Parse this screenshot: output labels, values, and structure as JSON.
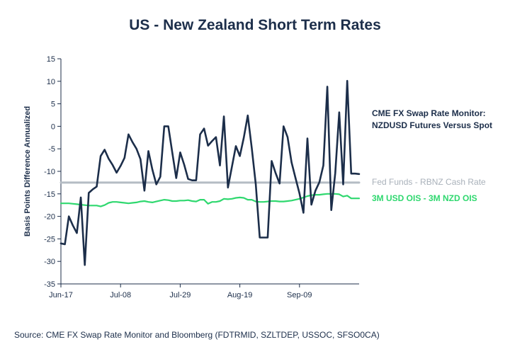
{
  "chart_data": {
    "type": "line",
    "title": "US - New Zealand Short Term Rates",
    "ylabel": "Basis Points Difference Annualized",
    "xlabel": "",
    "ylim": [
      -35,
      15
    ],
    "yticks": [
      15,
      10,
      5,
      0,
      -5,
      -10,
      -15,
      -20,
      -25,
      -30,
      -35
    ],
    "x_tick_labels": [
      "Jun-17",
      "Jul-08",
      "Jul-29",
      "Aug-19",
      "Sep-09"
    ],
    "x_tick_index": [
      0,
      15,
      30,
      45,
      60
    ],
    "x_count": 76,
    "grid": false,
    "legend_placement": "right",
    "series": [
      {
        "name": "CME FX Swap Rate Monitor: NZDUSD Futures Versus Spot",
        "color": "#1c2e4a",
        "values": [
          -26,
          -26.2,
          -20,
          -22,
          -23.7,
          -15.8,
          -30.8,
          -14.8,
          -14,
          -13.4,
          -6.6,
          -5.2,
          -7.2,
          -8.6,
          -10.3,
          -8.8,
          -7,
          -1.8,
          -3.5,
          -5,
          -7.3,
          -14.3,
          -5.5,
          -9.6,
          -12.9,
          -11.2,
          0,
          0,
          -5.8,
          -11.5,
          -5.8,
          -8.5,
          -11.7,
          -12,
          -12,
          -1.8,
          -0.5,
          -4.3,
          -3.3,
          -2.4,
          -8.7,
          2.2,
          -13.6,
          -9,
          -4.4,
          -6.6,
          -2.5,
          2.4,
          -4.8,
          -12.9,
          -24.7,
          -24.7,
          -24.7,
          -7.7,
          -10.4,
          -12.7,
          0,
          -2.4,
          -8,
          -11.5,
          -14.9,
          -19.2,
          -2.7,
          -17.4,
          -14.3,
          -12.4,
          -8.7,
          8.8,
          -18.6,
          -10.4,
          3.1,
          -12.9,
          10.1,
          -10.5,
          -10.5,
          -10.6
        ]
      },
      {
        "name": "Fed Funds - RBNZ Cash Rate",
        "color": "#b4bcc4",
        "values": [
          -12.5,
          -12.5,
          -12.5,
          -12.5,
          -12.5,
          -12.5,
          -12.5,
          -12.5,
          -12.5,
          -12.5,
          -12.5,
          -12.5,
          -12.5,
          -12.5,
          -12.5,
          -12.5,
          -12.5,
          -12.5,
          -12.5,
          -12.5,
          -12.5,
          -12.5,
          -12.5,
          -12.5,
          -12.5,
          -12.5,
          -12.5,
          -12.5,
          -12.5,
          -12.5,
          -12.5,
          -12.5,
          -12.5,
          -12.5,
          -12.5,
          -12.5,
          -12.5,
          -12.5,
          -12.5,
          -12.5,
          -12.5,
          -12.5,
          -12.5,
          -12.5,
          -12.5,
          -12.5,
          -12.5,
          -12.5,
          -12.5,
          -12.5,
          -12.5,
          -12.5,
          -12.5,
          -12.5,
          -12.5,
          -12.5,
          -12.5,
          -12.5,
          -12.5,
          -12.5,
          -12.5,
          -12.5,
          -12.5,
          -12.5,
          -12.5,
          -12.5,
          -12.5,
          -12.5,
          -12.5,
          -12.5,
          -12.5,
          -12.5,
          -12.5,
          -12.5,
          -12.5,
          -12.5
        ]
      },
      {
        "name": "3M USD OIS - 3M NZD OIS",
        "color": "#2fd86f",
        "values": [
          -17.1,
          -17.1,
          -17.1,
          -17.2,
          -17.3,
          -17.4,
          -17.5,
          -17.6,
          -17.6,
          -17.6,
          -17.8,
          -17.5,
          -17,
          -16.8,
          -16.8,
          -16.9,
          -17,
          -17.1,
          -17,
          -16.9,
          -16.7,
          -16.6,
          -16.8,
          -16.9,
          -16.7,
          -16.5,
          -16.3,
          -16.4,
          -16.6,
          -16.6,
          -16.5,
          -16.5,
          -16.4,
          -16.6,
          -16.7,
          -16.3,
          -16.3,
          -17.2,
          -16.8,
          -16.8,
          -16.6,
          -16.1,
          -16.2,
          -16.1,
          -15.9,
          -15.8,
          -15.9,
          -16.3,
          -16.3,
          -16.7,
          -16.8,
          -16.8,
          -16.7,
          -16.6,
          -16.6,
          -16.7,
          -16.7,
          -16.6,
          -16.5,
          -16.3,
          -16.1,
          -15.8,
          -15.5,
          -15.3,
          -15.2,
          -15.2,
          -15.1,
          -15,
          -15,
          -15,
          -15.1,
          -15.6,
          -15.4,
          -16,
          -16,
          -16
        ]
      }
    ]
  },
  "source_note": "Source: CME FX Swap Rate Monitor and Bloomberg (FDTRMID, SZLTDEP, USSOC, SFSO0CA)",
  "legend": {
    "futures_line1": "CME FX Swap Rate Monitor:",
    "futures_line2": "NZDUSD Futures Versus Spot",
    "fed": "Fed Funds - RBNZ Cash Rate",
    "ois": "3M USD OIS - 3M NZD OIS"
  }
}
